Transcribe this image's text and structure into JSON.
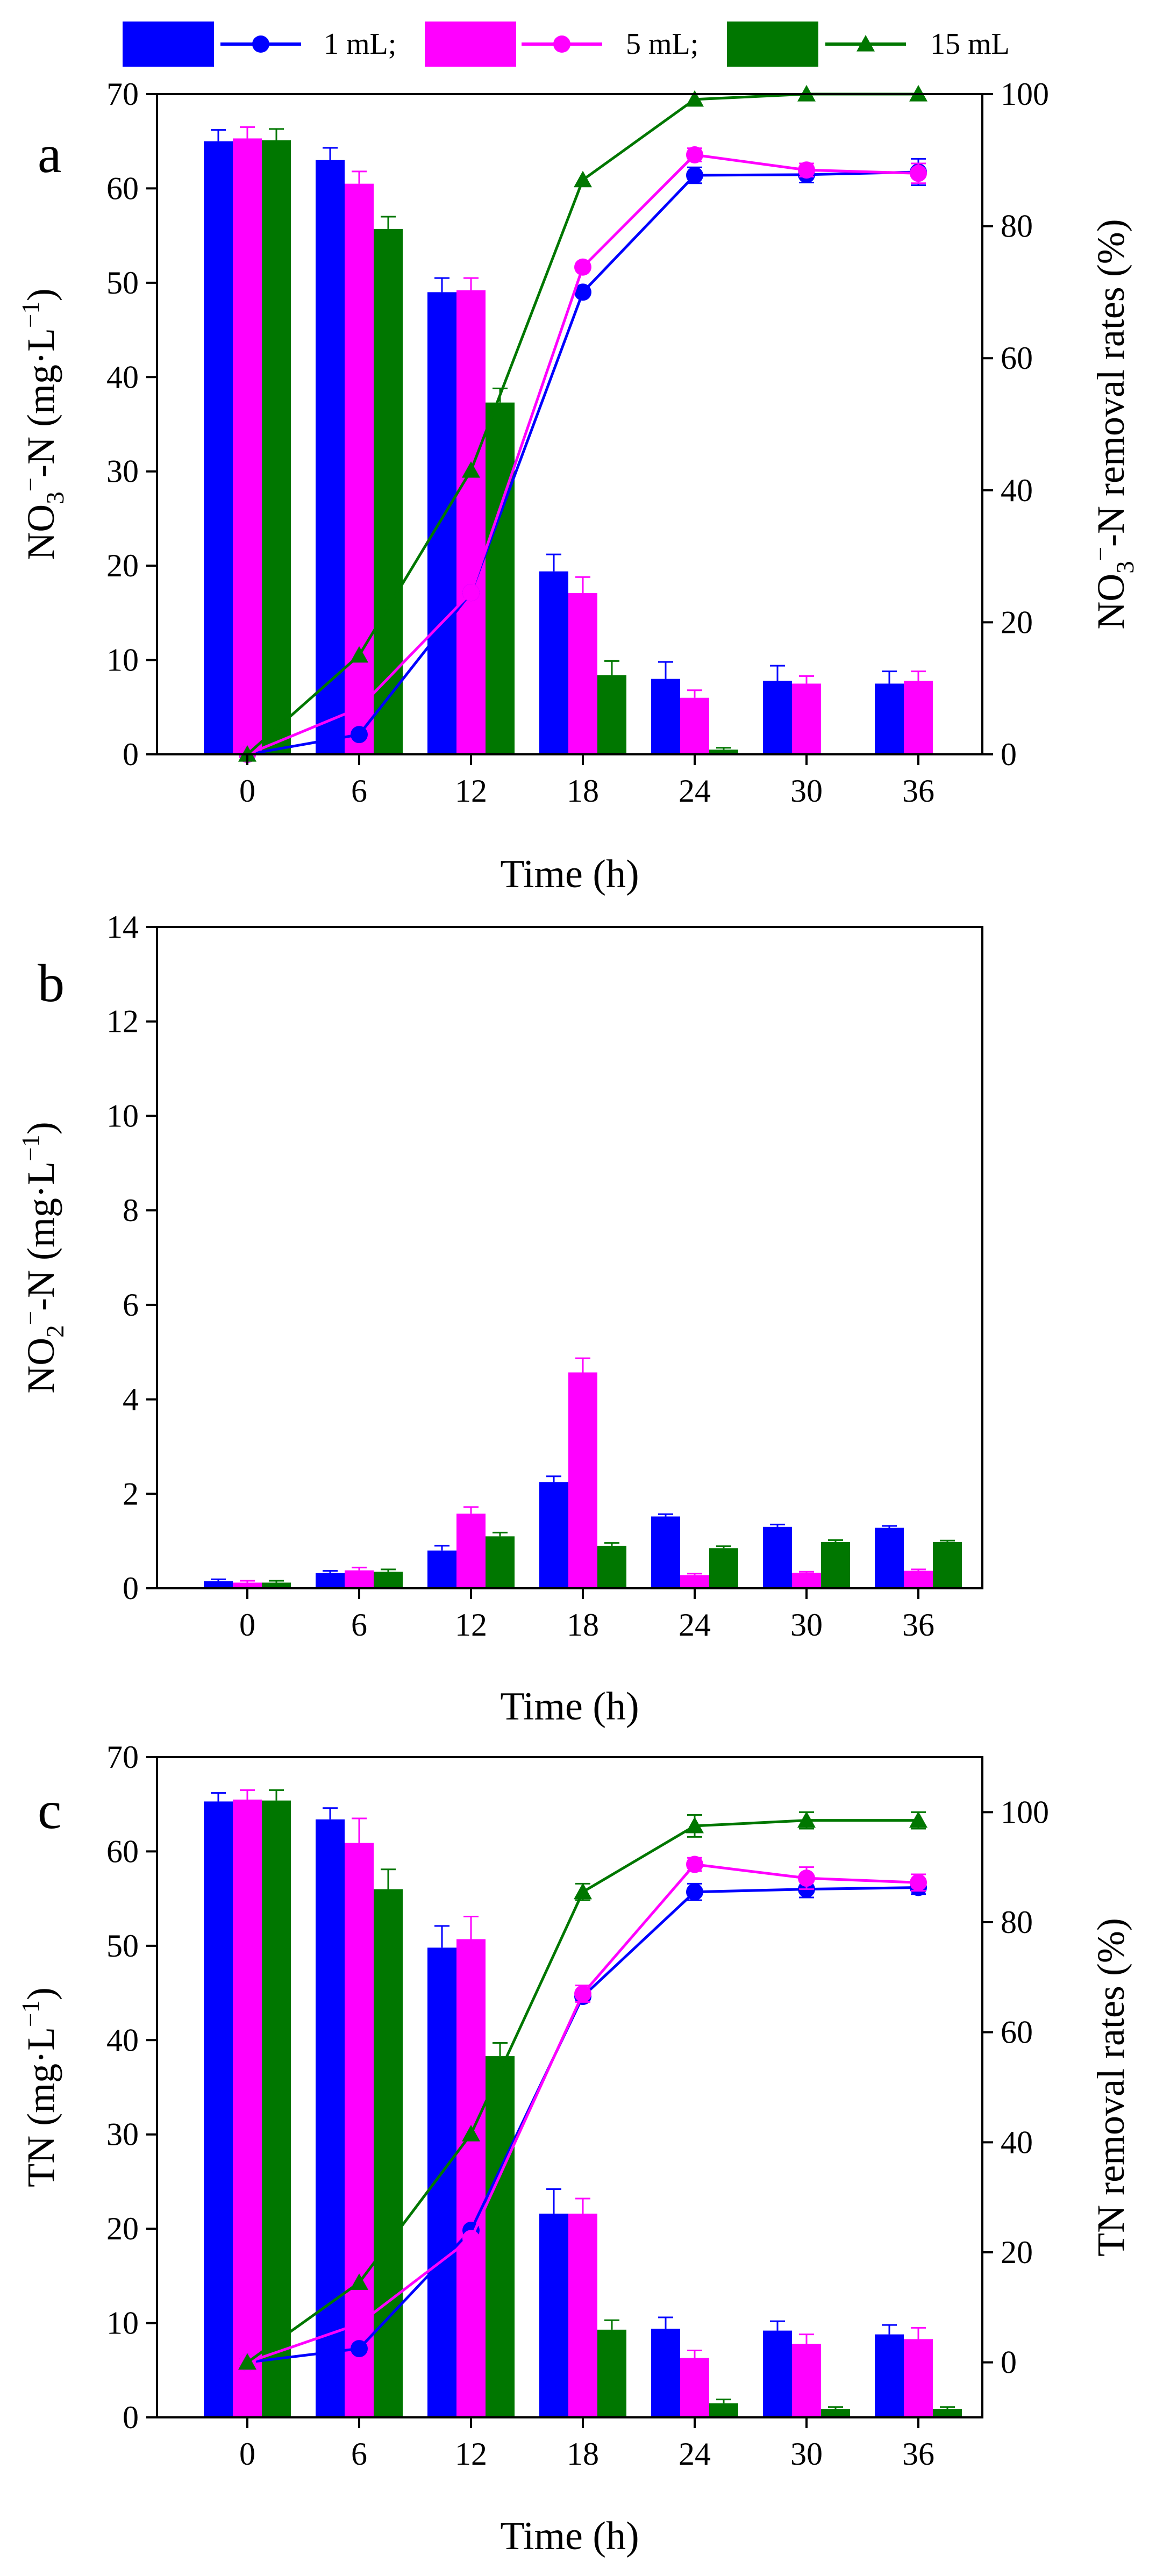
{
  "legend": [
    {
      "label": "1 mL;",
      "bar_color": "#0000ff",
      "line_color": "#0000ff",
      "marker": "circle"
    },
    {
      "label": "5 mL;",
      "bar_color": "#ff00ff",
      "line_color": "#ff00ff",
      "marker": "circle"
    },
    {
      "label": "15 mL",
      "bar_color": "#007700",
      "line_color": "#007700",
      "marker": "triangle"
    }
  ],
  "chart_data": [
    {
      "panel_letter": "a",
      "type": "bar+line",
      "xlabel": "Time (h)",
      "ylabel_left": "NO3−-N (mg·L−1)",
      "ylabel_right": "NO3−-N removal rates (%)",
      "categories": [
        "0",
        "6",
        "12",
        "18",
        "24",
        "30",
        "36"
      ],
      "ylim_left": [
        0,
        70
      ],
      "yticks_left": [
        0,
        10,
        20,
        30,
        40,
        50,
        60,
        70
      ],
      "ylim_right": [
        0,
        100
      ],
      "yticks_right": [
        0,
        20,
        40,
        60,
        80,
        100
      ],
      "bar_series": [
        {
          "name": "1 mL",
          "values": [
            65.0,
            63.0,
            49.0,
            19.4,
            8.0,
            7.8,
            7.5
          ],
          "errors": [
            1.2,
            1.3,
            1.5,
            1.8,
            1.8,
            1.6,
            1.3
          ]
        },
        {
          "name": "5 mL",
          "values": [
            65.3,
            60.5,
            49.2,
            17.1,
            6.0,
            7.5,
            7.8
          ],
          "errors": [
            1.2,
            1.3,
            1.3,
            1.7,
            0.8,
            0.8,
            1.0
          ]
        },
        {
          "name": "15 mL",
          "values": [
            65.1,
            55.7,
            37.3,
            8.4,
            0.5,
            0.0,
            0.0
          ],
          "errors": [
            1.2,
            1.3,
            1.5,
            1.5,
            0.2,
            0.0,
            0.0
          ]
        }
      ],
      "line_series": [
        {
          "name": "1 mL",
          "values": [
            0.0,
            3.0,
            24.5,
            70.0,
            87.7,
            87.8,
            88.2
          ],
          "errors": [
            0,
            0,
            0,
            0,
            1.2,
            1.2,
            2.0
          ]
        },
        {
          "name": "5 mL",
          "values": [
            0.0,
            7.0,
            24.5,
            73.8,
            90.8,
            88.5,
            88.0
          ],
          "errors": [
            0,
            0,
            0,
            0,
            1.0,
            1.0,
            1.5
          ]
        },
        {
          "name": "15 mL",
          "values": [
            0.0,
            15.0,
            43.0,
            87.0,
            99.2,
            100.0,
            100.0
          ],
          "errors": [
            0,
            0,
            0,
            0,
            0,
            0,
            0
          ]
        }
      ]
    },
    {
      "panel_letter": "b",
      "type": "bar",
      "xlabel": "Time (h)",
      "ylabel_left": "NO2−-N (mg·L−1)",
      "categories": [
        "0",
        "6",
        "12",
        "18",
        "24",
        "30",
        "36"
      ],
      "ylim_left": [
        0,
        14
      ],
      "yticks_left": [
        0,
        2,
        4,
        6,
        8,
        10,
        12,
        14
      ],
      "bar_series": [
        {
          "name": "1 mL",
          "values": [
            0.15,
            0.32,
            0.8,
            2.25,
            1.52,
            1.3,
            1.28
          ],
          "errors": [
            0.04,
            0.05,
            0.1,
            0.12,
            0.05,
            0.05,
            0.04
          ]
        },
        {
          "name": "5 mL",
          "values": [
            0.12,
            0.38,
            1.58,
            4.57,
            0.28,
            0.33,
            0.37
          ],
          "errors": [
            0.04,
            0.06,
            0.14,
            0.3,
            0.03,
            0.02,
            0.03
          ]
        },
        {
          "name": "15 mL",
          "values": [
            0.12,
            0.35,
            1.1,
            0.9,
            0.85,
            0.98,
            0.98
          ],
          "errors": [
            0.04,
            0.05,
            0.08,
            0.06,
            0.04,
            0.04,
            0.03
          ]
        }
      ]
    },
    {
      "panel_letter": "c",
      "type": "bar+line",
      "xlabel": "Time (h)",
      "ylabel_left": "TN (mg·L−1)",
      "ylabel_right": "TN removal rates (%)",
      "categories": [
        "0",
        "6",
        "12",
        "18",
        "24",
        "30",
        "36"
      ],
      "ylim_left": [
        0,
        70
      ],
      "yticks_left": [
        0,
        10,
        20,
        30,
        40,
        50,
        60,
        70
      ],
      "ylim_right": [
        -10,
        110
      ],
      "yticks_right": [
        0,
        20,
        40,
        60,
        80,
        100
      ],
      "bar_series": [
        {
          "name": "1 mL",
          "values": [
            65.3,
            63.4,
            49.8,
            21.6,
            9.4,
            9.2,
            8.8
          ],
          "errors": [
            0.9,
            1.2,
            2.3,
            2.6,
            1.2,
            1.0,
            1.0
          ]
        },
        {
          "name": "5 mL",
          "values": [
            65.5,
            60.9,
            50.7,
            21.6,
            6.3,
            7.8,
            8.3
          ],
          "errors": [
            1.0,
            2.6,
            2.4,
            1.6,
            0.8,
            1.0,
            1.2
          ]
        },
        {
          "name": "15 mL",
          "values": [
            65.4,
            56.0,
            38.3,
            9.3,
            1.5,
            0.9,
            0.9
          ],
          "errors": [
            1.1,
            2.1,
            1.4,
            1.0,
            0.4,
            0.2,
            0.2
          ]
        }
      ],
      "line_series": [
        {
          "name": "1 mL",
          "values": [
            0.0,
            2.5,
            24.0,
            66.5,
            85.5,
            86.0,
            86.3
          ],
          "errors": [
            0,
            0,
            0,
            0,
            1.5,
            1.5,
            1.2
          ]
        },
        {
          "name": "5 mL",
          "values": [
            0.0,
            7.0,
            22.5,
            67.0,
            90.5,
            88.0,
            87.2
          ],
          "errors": [
            0,
            0,
            0,
            1.5,
            1.2,
            2.0,
            1.5
          ]
        },
        {
          "name": "15 mL",
          "values": [
            0.0,
            14.5,
            41.5,
            85.5,
            97.5,
            98.5,
            98.5
          ],
          "errors": [
            0,
            0,
            0,
            1.5,
            2.0,
            1.5,
            1.5
          ]
        }
      ]
    }
  ]
}
